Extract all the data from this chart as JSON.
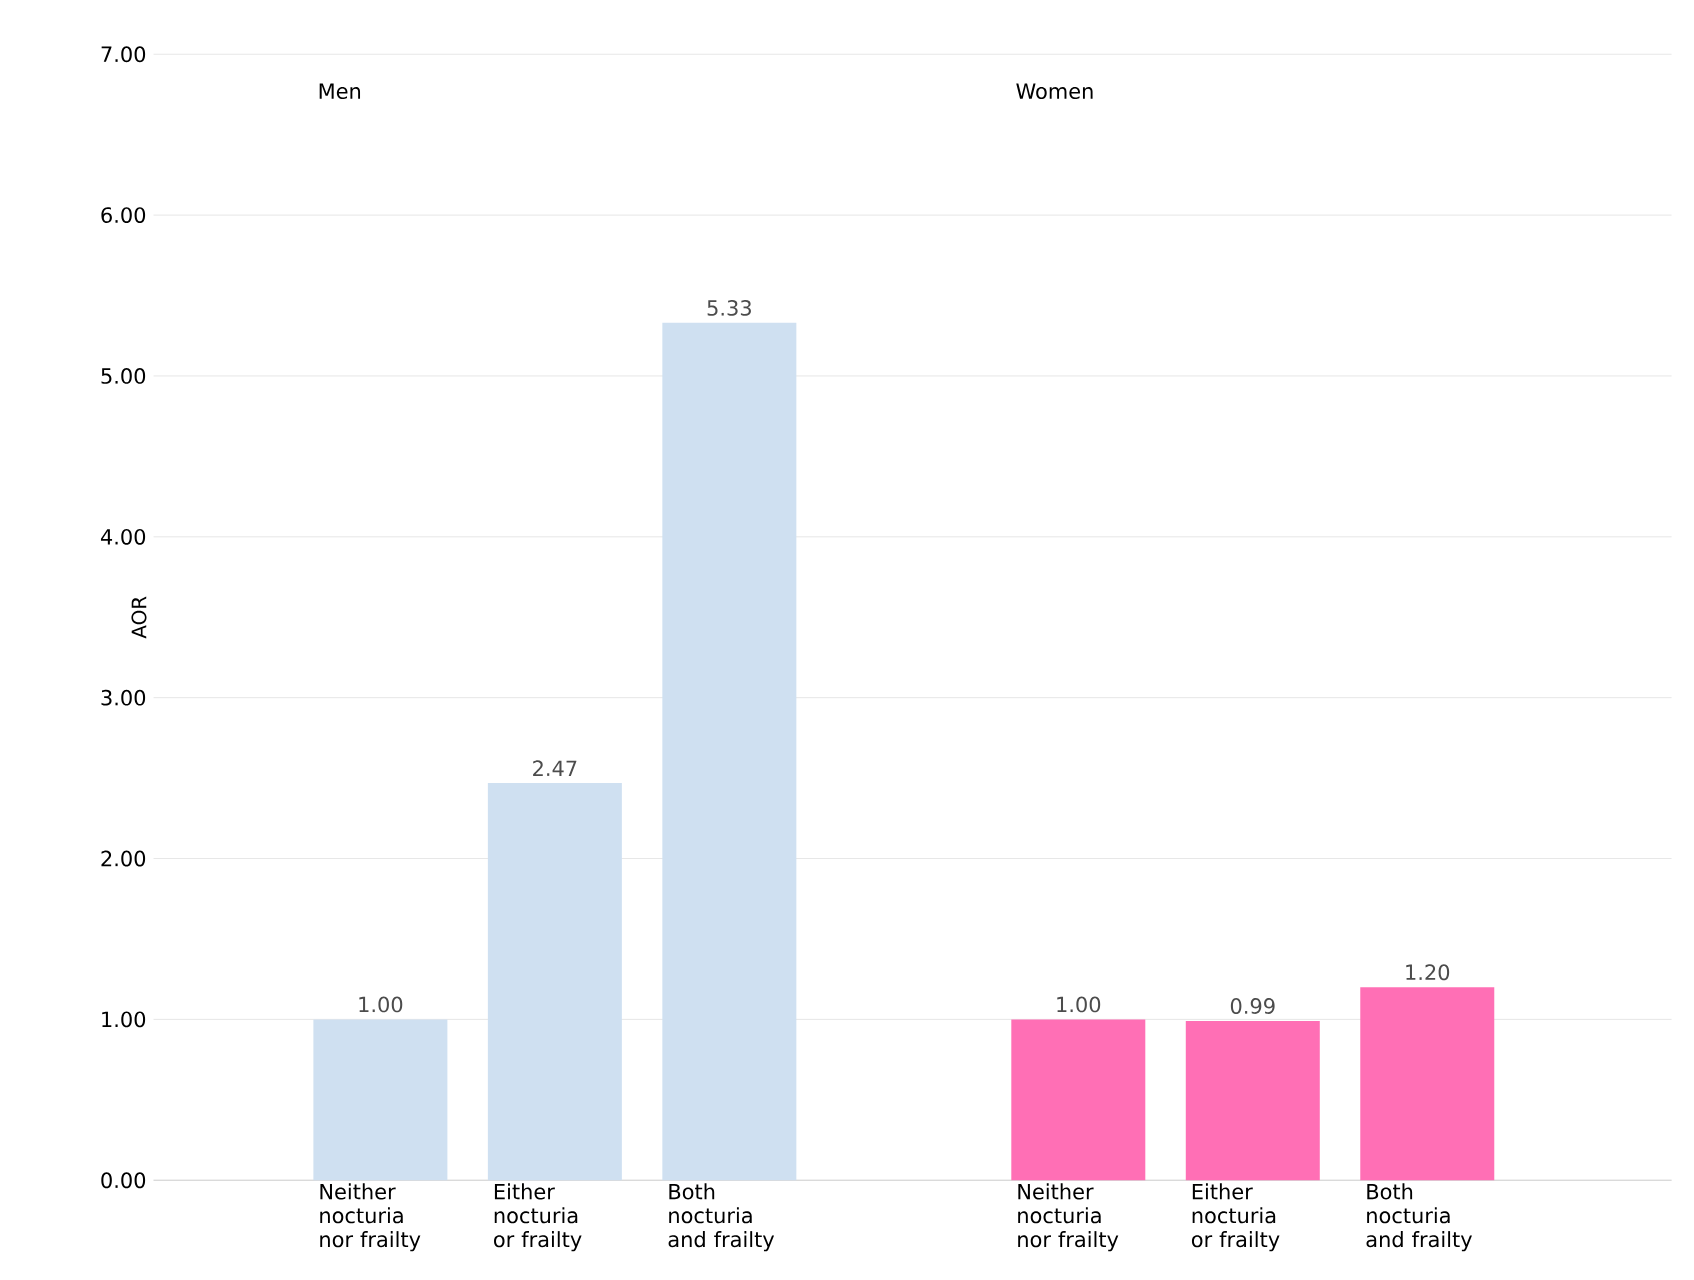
{
  "chart_data": {
    "type": "bar",
    "ylabel": "AOR",
    "categories": [
      "Neither nocturia nor frailty",
      "Either nocturia or frailty",
      "Both nocturia and frailty",
      null,
      "Neither nocturia nor frailty",
      "Either nocturia or frailty",
      "Both nocturia and frailty"
    ],
    "series": [
      {
        "color": "#cfe0f1",
        "values": [
          1.0,
          2.47,
          5.33,
          null,
          null,
          null,
          null
        ],
        "value_labels": [
          "1.00",
          "2.47",
          "5.33",
          null,
          null,
          null,
          null
        ]
      },
      {
        "color": "#ff6fb5",
        "values": [
          null,
          null,
          null,
          null,
          1.0,
          0.99,
          1.2
        ],
        "value_labels": [
          null,
          null,
          null,
          null,
          "1.00",
          "0.99",
          "1.20"
        ]
      }
    ],
    "ylim": [
      0,
      7
    ],
    "yticks": [
      {
        "value": 0,
        "label": "0.00"
      },
      {
        "value": 1,
        "label": "1.00"
      },
      {
        "value": 2,
        "label": "2.00"
      },
      {
        "value": 3,
        "label": "3.00"
      },
      {
        "value": 4,
        "label": "4.00"
      },
      {
        "value": 5,
        "label": "5.00"
      },
      {
        "value": 6,
        "label": "6.00"
      },
      {
        "value": 7,
        "label": "7.00"
      }
    ],
    "grid": "y",
    "annotations": [
      "Men",
      "Women"
    ]
  }
}
